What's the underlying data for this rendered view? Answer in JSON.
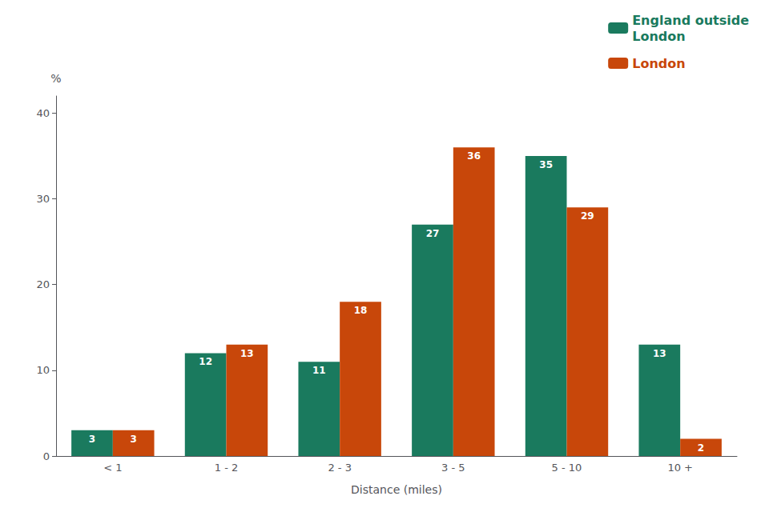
{
  "chart_data": {
    "type": "bar",
    "categories": [
      "< 1",
      "1 - 2",
      "2 - 3",
      "3 - 5",
      "5 - 10",
      "10 +"
    ],
    "series": [
      {
        "name": "England outside\nLondon",
        "color": "#1a7a5e",
        "values": [
          3,
          12,
          11,
          27,
          35,
          13
        ]
      },
      {
        "name": "London",
        "color": "#c8470a",
        "values": [
          3,
          13,
          18,
          36,
          29,
          2
        ]
      }
    ],
    "xlabel": "Distance (miles)",
    "ylabel": "%",
    "ylim": [
      0,
      42
    ],
    "yticks": [
      0,
      10,
      20,
      30,
      40
    ],
    "grid": false,
    "legend": "upper right",
    "data_labels": true
  }
}
